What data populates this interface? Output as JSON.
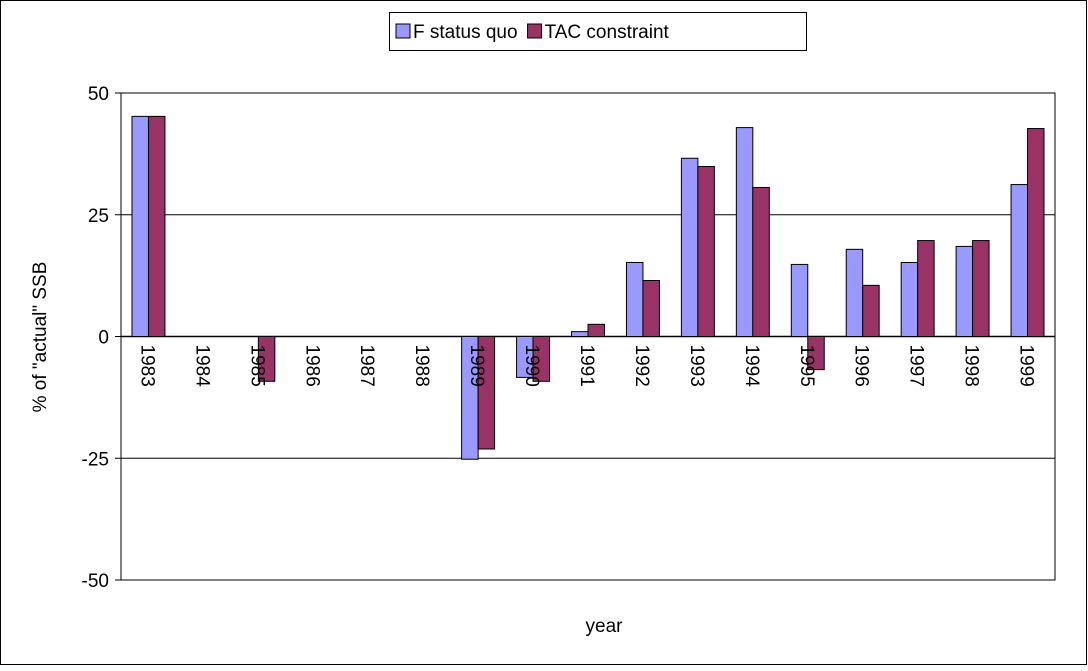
{
  "chart_data": {
    "type": "bar",
    "x_label": "year",
    "y_label": "% of \"actual\" SSB",
    "categories": [
      "1983",
      "1984",
      "1985",
      "1986",
      "1987",
      "1988",
      "1989",
      "1990",
      "1991",
      "1992",
      "1993",
      "1994",
      "1995",
      "1996",
      "1997",
      "1998",
      "1999"
    ],
    "series": [
      {
        "name": "F status quo",
        "color": "#9999ff",
        "values": [
          45.2,
          null,
          0,
          null,
          null,
          null,
          -25.2,
          -8.4,
          1.0,
          15.2,
          36.6,
          42.9,
          14.8,
          17.9,
          15.2,
          18.5,
          31.2
        ]
      },
      {
        "name": "TAC constraint",
        "color": "#993366",
        "values": [
          45.2,
          null,
          -9.2,
          null,
          null,
          null,
          -23.1,
          -9.2,
          2.5,
          11.5,
          34.9,
          30.6,
          -6.8,
          10.5,
          19.7,
          19.7,
          42.7
        ]
      }
    ],
    "ylim": [
      -50,
      50
    ],
    "yticks": [
      -50,
      -25,
      0,
      25,
      50
    ],
    "grid": true,
    "legend": "top"
  }
}
